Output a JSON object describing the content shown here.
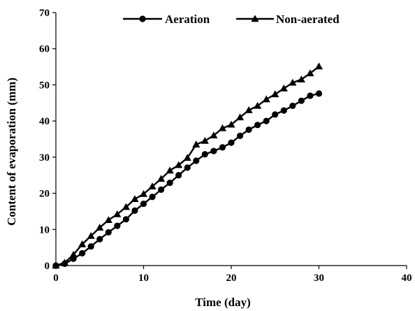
{
  "chart_data": {
    "type": "line",
    "title": "",
    "xlabel": "Time (day)",
    "ylabel": "Content of evaporation (mm)",
    "xlim": [
      0,
      40
    ],
    "ylim": [
      0,
      70
    ],
    "x_ticks": [
      "0",
      "10",
      "20",
      "30",
      "40"
    ],
    "y_ticks": [
      "0",
      "10",
      "20",
      "30",
      "40",
      "50",
      "60",
      "70"
    ],
    "grid": false,
    "legend_position": "top-center",
    "x": [
      0,
      1,
      2,
      3,
      4,
      5,
      6,
      7,
      8,
      9,
      10,
      11,
      12,
      13,
      14,
      15,
      16,
      17,
      18,
      19,
      20,
      21,
      22,
      23,
      24,
      25,
      26,
      27,
      28,
      29,
      30
    ],
    "series": [
      {
        "name": "Aeration",
        "marker": "circle",
        "color": "#000000",
        "values": [
          0,
          0.5,
          1.9,
          3.4,
          5.3,
          7.3,
          9.2,
          11.0,
          12.8,
          15.2,
          17.1,
          19.0,
          21.0,
          22.9,
          25.0,
          27.1,
          29.0,
          30.8,
          31.7,
          32.7,
          34.0,
          35.9,
          37.6,
          38.9,
          40.0,
          41.8,
          42.9,
          44.2,
          45.6,
          47.0,
          47.6
        ]
      },
      {
        "name": "Non-aerated",
        "marker": "triangle",
        "color": "#000000",
        "values": [
          0,
          0.8,
          3.0,
          5.9,
          8.2,
          10.5,
          12.6,
          14.2,
          16.2,
          18.4,
          19.8,
          21.9,
          24.0,
          26.3,
          27.8,
          29.8,
          33.5,
          34.5,
          36.0,
          38.0,
          39.0,
          41.0,
          43.0,
          44.2,
          46.0,
          47.4,
          49.0,
          50.6,
          51.5,
          53.2,
          55.1
        ]
      }
    ]
  }
}
